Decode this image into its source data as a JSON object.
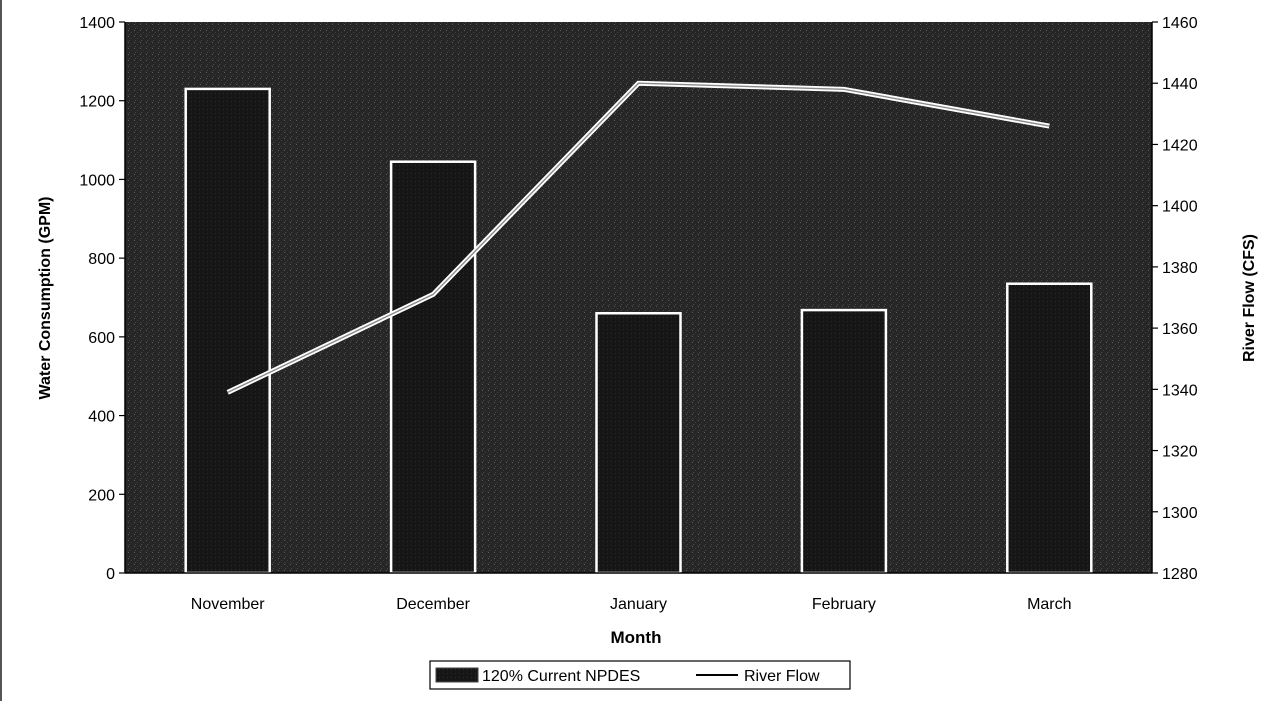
{
  "chart_data": {
    "type": "bar",
    "title": "",
    "xlabel": "Month",
    "ylabel": "Water Consumption (GPM)",
    "y2label": "River Flow (CFS)",
    "categories": [
      "November",
      "December",
      "January",
      "February",
      "March"
    ],
    "series": [
      {
        "name": "120% Current NPDES",
        "type": "bar",
        "axis": "left",
        "values": [
          1230,
          1045,
          660,
          668,
          735
        ]
      },
      {
        "name": "River Flow",
        "type": "line",
        "axis": "right",
        "values": [
          1339,
          1371,
          1440,
          1438,
          1426
        ]
      }
    ],
    "ylim": [
      0,
      1400
    ],
    "y2lim": [
      1280,
      1460
    ],
    "yticks": [
      "0",
      "200",
      "400",
      "600",
      "800",
      "1000",
      "1200",
      "1400"
    ],
    "y2ticks": [
      "1280",
      "1300",
      "1320",
      "1340",
      "1360",
      "1380",
      "1400",
      "1420",
      "1440",
      "1460"
    ],
    "grid": false,
    "legend_position": "bottom-center",
    "colors": {
      "bar_fill": "#1a1a1a",
      "bar_edge": "#ffffff",
      "plot_background": "#2a2a2a",
      "line": "#ffffff",
      "axis_text": "#000000"
    }
  }
}
